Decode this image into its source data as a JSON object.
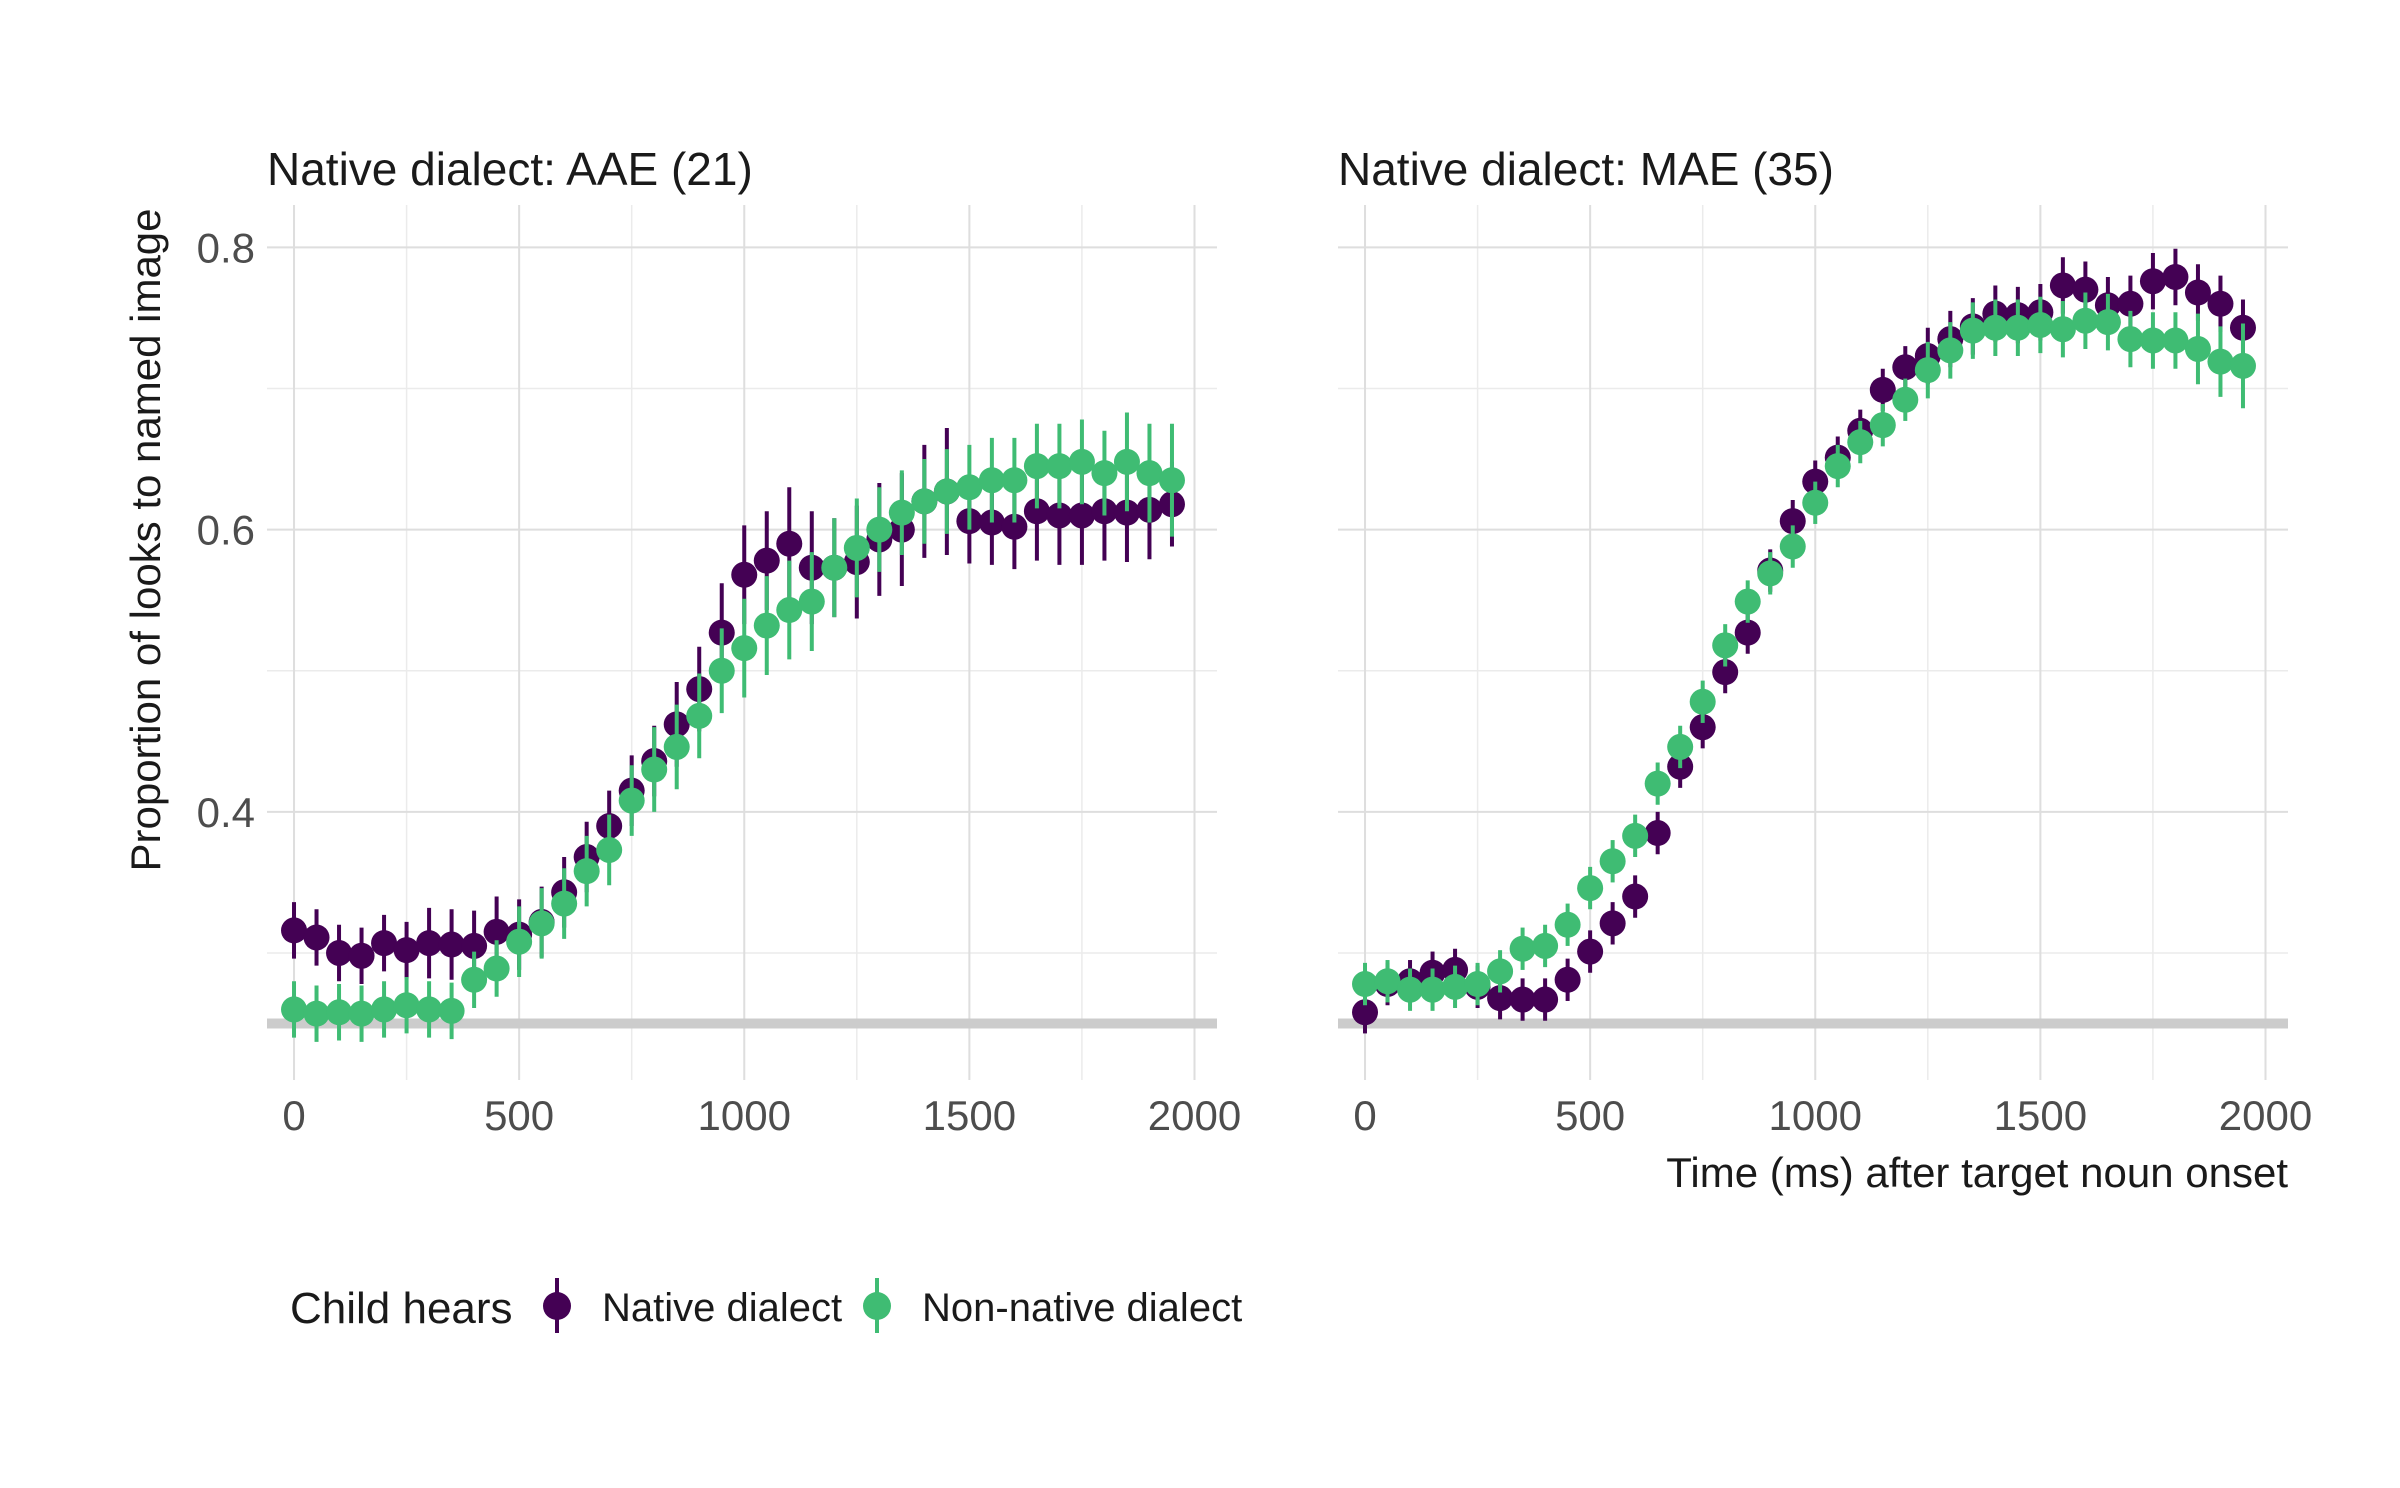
{
  "colors": {
    "native": "#440154",
    "nonnative": "#3FBC73",
    "grid_major": "#dedede",
    "grid_minor": "#ebebeb",
    "chance_line": "#cccccc"
  },
  "chart_data": {
    "type": "scatter",
    "xlabel": "Time (ms) after target noun onset",
    "ylabel": "Proportion of looks to named image",
    "x_ticks": [
      "0",
      "500",
      "1000",
      "1500",
      "2000"
    ],
    "x_tick_values": [
      0,
      500,
      1000,
      1500,
      2000
    ],
    "y_ticks": [
      "0.4",
      "0.6",
      "0.8"
    ],
    "y_tick_values": [
      0.4,
      0.6,
      0.8
    ],
    "xlim": [
      -60,
      2050
    ],
    "ylim": [
      0.21,
      0.83
    ],
    "chance_line_y": 0.25,
    "grid": true,
    "legend": {
      "position": "bottom",
      "title": "Child hears",
      "entries": [
        {
          "label": "Native dialect",
          "color": "#440154"
        },
        {
          "label": "Non-native dialect",
          "color": "#3FBC73"
        }
      ]
    },
    "x": [
      0,
      50,
      100,
      150,
      200,
      250,
      300,
      350,
      400,
      450,
      500,
      550,
      600,
      650,
      700,
      750,
      800,
      850,
      900,
      950,
      1000,
      1050,
      1100,
      1150,
      1200,
      1250,
      1300,
      1350,
      1400,
      1450,
      1500,
      1550,
      1600,
      1650,
      1700,
      1750,
      1800,
      1850,
      1900,
      1950
    ],
    "panels": [
      {
        "title": "Native dialect: AAE (21)",
        "series": [
          {
            "name": "Native dialect",
            "values": [
              0.316,
              0.311,
              0.3,
              0.298,
              0.307,
              0.302,
              0.307,
              0.306,
              0.305,
              0.315,
              0.313,
              0.322,
              0.343,
              0.368,
              0.39,
              0.415,
              0.436,
              0.462,
              0.487,
              0.527,
              0.568,
              0.578,
              0.59,
              0.573,
              0.573,
              0.577,
              0.593,
              0.6,
              0.62,
              0.627,
              0.606,
              0.605,
              0.602,
              0.613,
              0.61,
              0.61,
              0.613,
              0.612,
              0.614,
              0.618
            ],
            "err": [
              0.02,
              0.02,
              0.02,
              0.02,
              0.02,
              0.02,
              0.025,
              0.025,
              0.025,
              0.025,
              0.025,
              0.025,
              0.025,
              0.025,
              0.025,
              0.025,
              0.025,
              0.03,
              0.03,
              0.035,
              0.035,
              0.035,
              0.04,
              0.04,
              0.035,
              0.04,
              0.04,
              0.04,
              0.04,
              0.045,
              0.03,
              0.03,
              0.03,
              0.035,
              0.035,
              0.035,
              0.035,
              0.035,
              0.035,
              0.03
            ]
          },
          {
            "name": "Non-native dialect",
            "values": [
              0.26,
              0.257,
              0.258,
              0.257,
              0.26,
              0.263,
              0.26,
              0.259,
              0.281,
              0.289,
              0.308,
              0.321,
              0.335,
              0.358,
              0.373,
              0.408,
              0.43,
              0.446,
              0.468,
              0.5,
              0.516,
              0.532,
              0.543,
              0.549,
              0.573,
              0.587,
              0.6,
              0.612,
              0.62,
              0.627,
              0.63,
              0.635,
              0.635,
              0.645,
              0.645,
              0.648,
              0.64,
              0.648,
              0.64,
              0.635
            ],
            "err": [
              0.02,
              0.02,
              0.02,
              0.02,
              0.02,
              0.02,
              0.02,
              0.02,
              0.02,
              0.02,
              0.025,
              0.025,
              0.025,
              0.025,
              0.025,
              0.025,
              0.03,
              0.03,
              0.03,
              0.03,
              0.035,
              0.035,
              0.035,
              0.035,
              0.035,
              0.035,
              0.03,
              0.03,
              0.03,
              0.03,
              0.03,
              0.03,
              0.03,
              0.03,
              0.03,
              0.03,
              0.03,
              0.035,
              0.035,
              0.04
            ]
          }
        ]
      },
      {
        "title": "Native dialect: MAE (35)",
        "series": [
          {
            "name": "Native dialect",
            "values": [
              0.258,
              0.278,
              0.28,
              0.286,
              0.288,
              0.276,
              0.268,
              0.267,
              0.267,
              0.281,
              0.301,
              0.321,
              0.34,
              0.385,
              0.432,
              0.46,
              0.499,
              0.527,
              0.571,
              0.606,
              0.634,
              0.651,
              0.67,
              0.699,
              0.715,
              0.723,
              0.735,
              0.744,
              0.753,
              0.752,
              0.754,
              0.773,
              0.77,
              0.759,
              0.76,
              0.776,
              0.779,
              0.768,
              0.76,
              0.743
            ],
            "err": [
              0.015,
              0.015,
              0.015,
              0.015,
              0.015,
              0.015,
              0.015,
              0.015,
              0.015,
              0.015,
              0.015,
              0.015,
              0.015,
              0.015,
              0.015,
              0.015,
              0.015,
              0.015,
              0.015,
              0.015,
              0.015,
              0.015,
              0.015,
              0.015,
              0.015,
              0.02,
              0.02,
              0.02,
              0.02,
              0.02,
              0.02,
              0.02,
              0.02,
              0.02,
              0.02,
              0.02,
              0.02,
              0.02,
              0.02,
              0.02
            ]
          },
          {
            "name": "Non-native dialect",
            "values": [
              0.278,
              0.28,
              0.274,
              0.274,
              0.276,
              0.278,
              0.287,
              0.303,
              0.305,
              0.32,
              0.346,
              0.365,
              0.383,
              0.42,
              0.446,
              0.478,
              0.518,
              0.549,
              0.569,
              0.588,
              0.619,
              0.645,
              0.662,
              0.674,
              0.692,
              0.713,
              0.727,
              0.741,
              0.743,
              0.743,
              0.745,
              0.742,
              0.748,
              0.747,
              0.735,
              0.734,
              0.734,
              0.728,
              0.719,
              0.716
            ],
            "err": [
              0.015,
              0.015,
              0.015,
              0.015,
              0.015,
              0.015,
              0.015,
              0.015,
              0.015,
              0.015,
              0.015,
              0.015,
              0.015,
              0.015,
              0.015,
              0.015,
              0.015,
              0.015,
              0.015,
              0.015,
              0.015,
              0.015,
              0.015,
              0.015,
              0.015,
              0.02,
              0.02,
              0.02,
              0.02,
              0.02,
              0.02,
              0.02,
              0.02,
              0.02,
              0.02,
              0.02,
              0.02,
              0.025,
              0.025,
              0.03
            ]
          }
        ]
      }
    ]
  }
}
